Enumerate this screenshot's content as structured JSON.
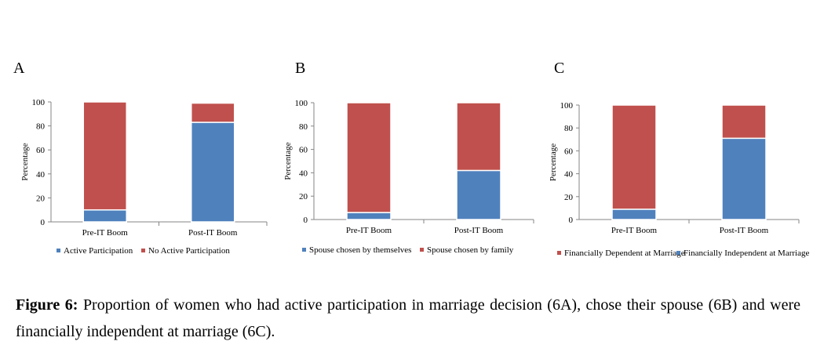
{
  "colors": {
    "series1": "#4f81bd",
    "series2": "#c0504d",
    "axis": "#868686"
  },
  "panels": [
    "A",
    "B",
    "C"
  ],
  "caption": {
    "label": "Figure 6:",
    "text": "Proportion of women who had active participation in marriage decision (6A), chose their spouse (6B) and were financially independent at marriage (6C)."
  },
  "chart_data": [
    {
      "type": "bar",
      "stacked": true,
      "ylabel": "Percentage",
      "ylim": [
        0,
        100
      ],
      "yticks": [
        0,
        20,
        40,
        60,
        80,
        100
      ],
      "categories": [
        "Pre-IT Boom",
        "Post-IT Boom"
      ],
      "series": [
        {
          "name": "Active Participation",
          "values": [
            10,
            83
          ]
        },
        {
          "name": "No Active Participation",
          "values": [
            90,
            16
          ]
        }
      ],
      "legend": "bottom"
    },
    {
      "type": "bar",
      "stacked": true,
      "ylabel": "Percentage",
      "ylim": [
        0,
        100
      ],
      "yticks": [
        0,
        20,
        40,
        60,
        80,
        100
      ],
      "categories": [
        "Pre-IT Boom",
        "Post-IT Boom"
      ],
      "series": [
        {
          "name": "Spouse chosen by themselves",
          "values": [
            6,
            42
          ]
        },
        {
          "name": "Spouse chosen by family",
          "values": [
            94,
            58
          ]
        }
      ],
      "legend": "bottom"
    },
    {
      "type": "bar",
      "stacked": true,
      "ylabel": "Percentage",
      "ylim": [
        0,
        100
      ],
      "yticks": [
        0,
        20,
        40,
        60,
        80,
        100
      ],
      "categories": [
        "Pre-IT Boom",
        "Post-IT Boom"
      ],
      "series": [
        {
          "name": "Financially Independent at Marriage",
          "values": [
            9,
            71
          ]
        },
        {
          "name": "Financially Dependent at Marriage",
          "values": [
            91,
            29
          ]
        }
      ],
      "legend": "bottom",
      "legend_order": [
        1,
        0
      ]
    }
  ]
}
